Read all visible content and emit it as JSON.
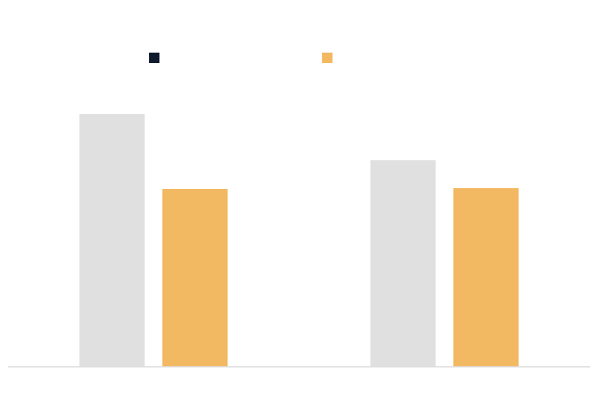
{
  "chart_data": {
    "type": "bar",
    "categories": [
      null,
      null
    ],
    "series": [
      {
        "color": "#e0e0e0",
        "legend_color": "#0f1b2d",
        "values": [
          317,
          259
        ]
      },
      {
        "color": "#f2b962",
        "legend_color": "#f2b962",
        "values": [
          223,
          224
        ]
      }
    ],
    "ylim": [
      0,
      350
    ],
    "legend": "top"
  }
}
